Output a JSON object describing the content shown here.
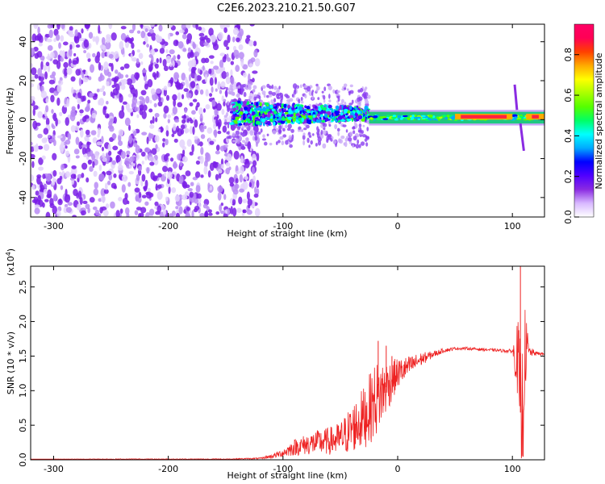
{
  "title": "C2E6.2023.210.21.50.G07",
  "chart_data": [
    {
      "type": "heatmap",
      "xlabel": "Height of straight line (km)",
      "ylabel": "Frequency (Hz)",
      "xlim": [
        -320,
        128
      ],
      "ylim": [
        -50,
        49
      ],
      "xticks": [
        -300,
        -200,
        -100,
        0,
        100
      ],
      "yticks": [
        -40,
        -20,
        0,
        20,
        40
      ],
      "regions": [
        {
          "x": [
            -320,
            -122
          ],
          "y": [
            -50,
            49
          ],
          "amplitude": 0.05,
          "note_texture": "scattered"
        },
        {
          "x": [
            -145,
            -25
          ],
          "y": [
            -8,
            14
          ],
          "amplitude": 0.35
        },
        {
          "x": [
            -25,
            128
          ],
          "y": [
            -2,
            4
          ],
          "amplitude": 0.45
        },
        {
          "x": [
            50,
            100
          ],
          "y": [
            0,
            3
          ],
          "amplitude": 0.85
        },
        {
          "x": [
            112,
            128
          ],
          "y": [
            0,
            3
          ],
          "amplitude": 0.85
        }
      ],
      "colorbar": {
        "label": "Normalized spectral amplitude",
        "range": [
          0.0,
          0.95
        ],
        "ticks": [
          "0.0",
          "0.2",
          "0.4",
          "0.6",
          "0.8"
        ],
        "colors": [
          "#ffffff",
          "#d8b8ff",
          "#8a2be2",
          "#5000ff",
          "#0000ff",
          "#00aaff",
          "#00ffff",
          "#00ff66",
          "#55ff00",
          "#aaff00",
          "#ffff00",
          "#ffaa00",
          "#ff4000",
          "#ff0055",
          "#ff0066"
        ]
      }
    },
    {
      "type": "line",
      "xlabel": "Height of straight line (km)",
      "ylabel": "SNR (10 * v/v)",
      "y_multiplier": "(x10",
      "y_multiplier_exp": "4",
      "y_multiplier_close": ")",
      "xlim": [
        -320,
        128
      ],
      "ylim": [
        0,
        2.8
      ],
      "xticks": [
        -300,
        -200,
        -100,
        0,
        100
      ],
      "yticks": [
        "0.0",
        "0.5",
        "1.0",
        "1.5",
        "2.0",
        "2.5"
      ],
      "series": [
        {
          "color": "#ee2222",
          "x": [
            -320,
            -250,
            -200,
            -150,
            -120,
            -110,
            -100,
            -90,
            -80,
            -70,
            -60,
            -50,
            -40,
            -30,
            -20,
            -15,
            -10,
            -5,
            0,
            10,
            20,
            30,
            40,
            50,
            60,
            70,
            80,
            90,
            100,
            105,
            108,
            111,
            115,
            120,
            128
          ],
          "y": [
            0.01,
            0.01,
            0.01,
            0.01,
            0.02,
            0.05,
            0.1,
            0.18,
            0.22,
            0.25,
            0.27,
            0.3,
            0.45,
            0.6,
            0.85,
            0.95,
            1.05,
            1.15,
            1.25,
            1.35,
            1.45,
            1.52,
            1.58,
            1.61,
            1.61,
            1.6,
            1.59,
            1.58,
            1.57,
            1.45,
            0.3,
            1.6,
            1.56,
            1.54,
            1.53
          ],
          "noise": [
            0.0,
            0.005,
            0.005,
            0.006,
            0.01,
            0.03,
            0.06,
            0.12,
            0.15,
            0.18,
            0.2,
            0.25,
            0.35,
            0.45,
            0.55,
            0.5,
            0.4,
            0.3,
            0.22,
            0.15,
            0.1,
            0.05,
            0.03,
            0.02,
            0.02,
            0.02,
            0.02,
            0.02,
            0.03,
            0.6,
            1.2,
            0.6,
            0.08,
            0.03,
            0.02
          ],
          "peaks": [
            {
              "x": -17,
              "y": 1.72
            },
            {
              "x": -10,
              "y": 1.65
            },
            {
              "x": -5,
              "y": 1.5
            },
            {
              "x": 107,
              "y": 2.8
            },
            {
              "x": 109,
              "y": 0.05
            }
          ]
        }
      ]
    }
  ]
}
